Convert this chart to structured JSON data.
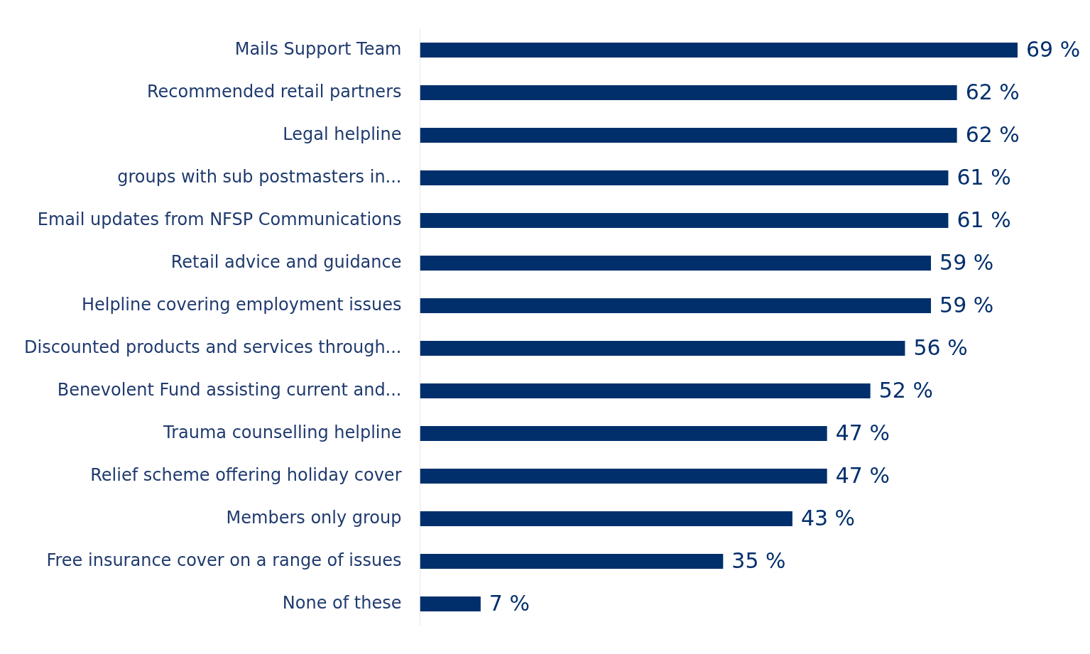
{
  "chart_data": {
    "type": "bar",
    "orientation": "horizontal",
    "categories": [
      "Mails Support Team",
      "Recommended retail partners",
      "Legal helpline",
      "groups with sub postmasters in...",
      "Email updates from NFSP Communications",
      "Retail advice and guidance",
      "Helpline covering employment issues",
      "Discounted products and services through...",
      "Benevolent Fund assisting current and...",
      "Trauma counselling helpline",
      "Relief scheme offering holiday cover",
      "Members only group",
      "Free insurance cover on a range of issues",
      "None of these"
    ],
    "values": [
      69,
      62,
      62,
      61,
      61,
      59,
      59,
      56,
      52,
      47,
      47,
      43,
      35,
      7
    ],
    "value_labels": [
      "69 %",
      "62 %",
      "62 %",
      "61 %",
      "61 %",
      "59 %",
      "59 %",
      "56 %",
      "52 %",
      "47 %",
      "47 %",
      "43 %",
      "35 %",
      "7 %"
    ],
    "color": "#002f6c"
  }
}
